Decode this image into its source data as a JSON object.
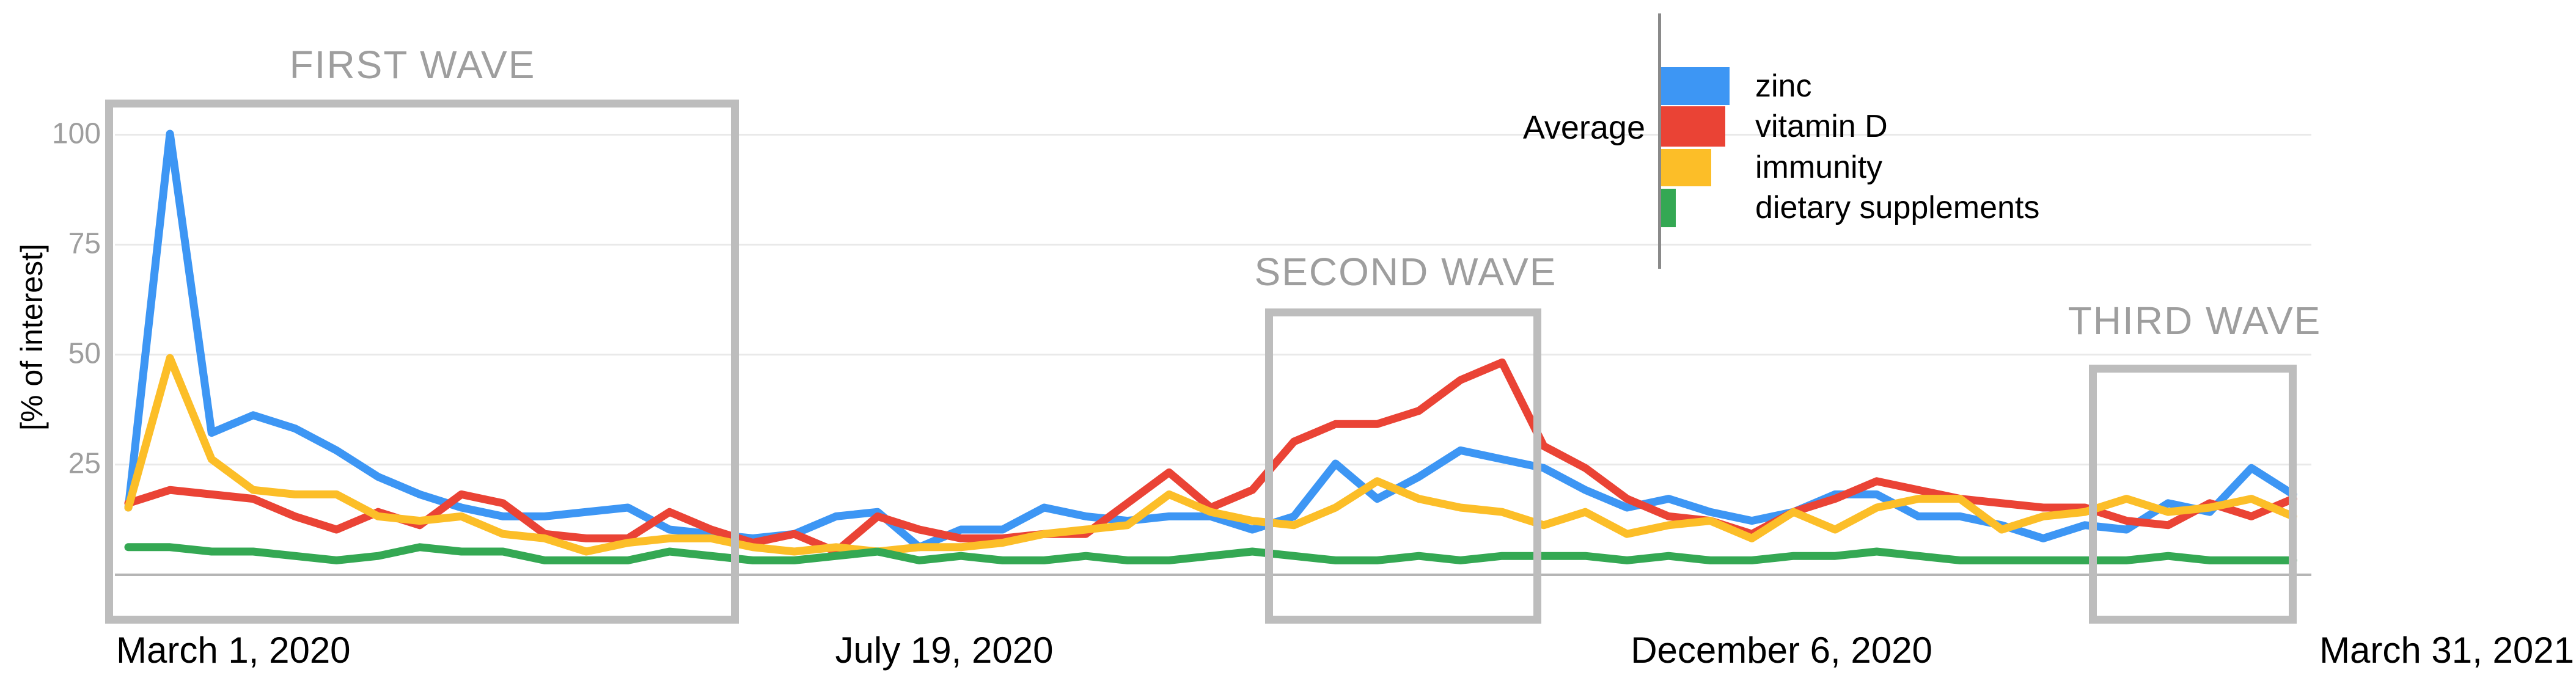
{
  "y_axis": {
    "title": "[% of interest]",
    "ticks": [
      "100",
      "75",
      "50",
      "25"
    ]
  },
  "x_axis": {
    "labels": [
      "March 1, 2020",
      "July 19, 2020",
      "December 6, 2020",
      "March 31, 2021"
    ]
  },
  "annotations": [
    {
      "label": "FIRST WAVE"
    },
    {
      "label": "SECOND WAVE"
    },
    {
      "label": "THIRD WAVE"
    }
  ],
  "legend": {
    "average_label": "Average",
    "items": [
      {
        "label": "zinc",
        "color": "#3d96f4"
      },
      {
        "label": "vitamin D",
        "color": "#ea4335"
      },
      {
        "label": "immunity",
        "color": "#fcbe28"
      },
      {
        "label": "dietary supplements",
        "color": "#34a853"
      }
    ]
  },
  "chart_data": {
    "type": "line",
    "title": "",
    "xlabel": "",
    "ylabel": "[% of interest]",
    "ylim": [
      0,
      100
    ],
    "y_ticks": [
      25,
      50,
      75,
      100
    ],
    "x_tick_labels": [
      "March 1, 2020",
      "July 19, 2020",
      "December 6, 2020",
      "March 31, 2021"
    ],
    "x_granularity": "weekly",
    "n_points": 53,
    "grid": true,
    "legend_position": "top-right-overlay",
    "legend_note": "Average bars beside legend are proportional to each term's average interest",
    "series": [
      {
        "name": "zinc",
        "color": "#3d96f4",
        "values": [
          15,
          100,
          32,
          36,
          33,
          28,
          22,
          18,
          15,
          13,
          13,
          14,
          15,
          10,
          9,
          8,
          9,
          13,
          14,
          6,
          10,
          10,
          15,
          13,
          12,
          13,
          13,
          10,
          13,
          25,
          17,
          22,
          28,
          26,
          24,
          19,
          15,
          17,
          14,
          12,
          14,
          18,
          18,
          13,
          13,
          11,
          8,
          11,
          10,
          16,
          14,
          24,
          18
        ]
      },
      {
        "name": "vitamin D",
        "color": "#ea4335",
        "values": [
          16,
          19,
          18,
          17,
          13,
          10,
          14,
          11,
          18,
          16,
          9,
          8,
          8,
          14,
          10,
          7,
          9,
          5,
          13,
          10,
          8,
          8,
          9,
          9,
          16,
          23,
          15,
          19,
          30,
          34,
          34,
          37,
          44,
          48,
          29,
          24,
          17,
          13,
          12,
          9,
          14,
          17,
          21,
          19,
          17,
          16,
          15,
          15,
          12,
          11,
          16,
          13,
          17
        ]
      },
      {
        "name": "immunity",
        "color": "#fcbe28",
        "values": [
          15,
          49,
          26,
          19,
          18,
          18,
          13,
          12,
          13,
          9,
          8,
          5,
          7,
          8,
          8,
          6,
          5,
          6,
          5,
          6,
          6,
          7,
          9,
          10,
          11,
          18,
          14,
          12,
          11,
          15,
          21,
          17,
          15,
          14,
          11,
          14,
          9,
          11,
          12,
          8,
          14,
          10,
          15,
          17,
          17,
          10,
          13,
          14,
          17,
          14,
          15,
          17,
          13
        ]
      },
      {
        "name": "dietary supplements",
        "color": "#34a853",
        "values": [
          6,
          6,
          5,
          5,
          4,
          3,
          4,
          6,
          5,
          5,
          3,
          3,
          3,
          5,
          4,
          3,
          3,
          4,
          5,
          3,
          4,
          3,
          3,
          4,
          3,
          3,
          4,
          5,
          4,
          3,
          3,
          4,
          3,
          4,
          4,
          4,
          3,
          4,
          3,
          3,
          4,
          4,
          5,
          4,
          3,
          3,
          3,
          3,
          3,
          4,
          3,
          3,
          3
        ]
      }
    ],
    "annotation_boxes": [
      {
        "label": "FIRST WAVE",
        "week_range": [
          0,
          15
        ]
      },
      {
        "label": "SECOND WAVE",
        "week_range": [
          27,
          34
        ]
      },
      {
        "label": "THIRD WAVE",
        "week_range": [
          47,
          52
        ]
      }
    ]
  },
  "ui_colors": {
    "gridline": "#e9e9e9",
    "axis_line": "#b5b5b5",
    "box_border": "#bdbdbd",
    "annotation_text": "#9e9e9e",
    "tick_text": "#9e9e9e",
    "legend_divider": "#8a8a8a"
  }
}
